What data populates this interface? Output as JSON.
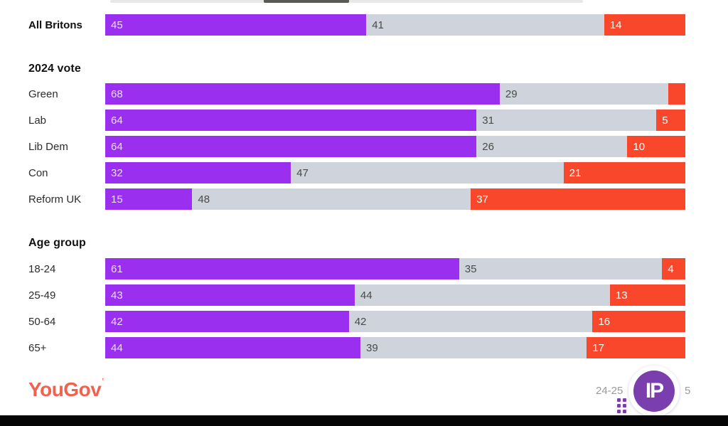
{
  "chart_data": {
    "type": "bar",
    "variant": "horizontal-stacked-100",
    "title": "",
    "legend": [],
    "colors": {
      "support": "#9B2FF0",
      "neutral": "#CFD3DB",
      "oppose": "#F8472B"
    },
    "axis": {
      "range": [
        0,
        100
      ],
      "grid": false
    },
    "groups": [
      {
        "heading": "",
        "rows": [
          {
            "label": "All Britons",
            "segments": [
              {
                "value": 45,
                "display": "45"
              },
              {
                "value": 41,
                "display": "41"
              },
              {
                "value": 14,
                "display": "14"
              }
            ]
          }
        ]
      },
      {
        "heading": "2024 vote",
        "rows": [
          {
            "label": "Green",
            "segments": [
              {
                "value": 68,
                "display": "68"
              },
              {
                "value": 29,
                "display": "29"
              },
              {
                "value": 3,
                "display": ""
              }
            ]
          },
          {
            "label": "Lab",
            "segments": [
              {
                "value": 64,
                "display": "64"
              },
              {
                "value": 31,
                "display": "31"
              },
              {
                "value": 5,
                "display": "5"
              }
            ]
          },
          {
            "label": "Lib Dem",
            "segments": [
              {
                "value": 64,
                "display": "64"
              },
              {
                "value": 26,
                "display": "26"
              },
              {
                "value": 10,
                "display": "10"
              }
            ]
          },
          {
            "label": "Con",
            "segments": [
              {
                "value": 32,
                "display": "32"
              },
              {
                "value": 47,
                "display": "47"
              },
              {
                "value": 21,
                "display": "21"
              }
            ]
          },
          {
            "label": "Reform UK",
            "segments": [
              {
                "value": 15,
                "display": "15"
              },
              {
                "value": 48,
                "display": "48"
              },
              {
                "value": 37,
                "display": "37"
              }
            ]
          }
        ]
      },
      {
        "heading": "Age group",
        "rows": [
          {
            "label": "18-24",
            "segments": [
              {
                "value": 61,
                "display": "61"
              },
              {
                "value": 35,
                "display": "35"
              },
              {
                "value": 4,
                "display": "4"
              }
            ]
          },
          {
            "label": "25-49",
            "segments": [
              {
                "value": 43,
                "display": "43"
              },
              {
                "value": 44,
                "display": "44"
              },
              {
                "value": 13,
                "display": "13"
              }
            ]
          },
          {
            "label": "50-64",
            "segments": [
              {
                "value": 42,
                "display": "42"
              },
              {
                "value": 42,
                "display": "42"
              },
              {
                "value": 16,
                "display": "16"
              }
            ]
          },
          {
            "label": "65+",
            "segments": [
              {
                "value": 44,
                "display": "44"
              },
              {
                "value": 39,
                "display": "39"
              },
              {
                "value": 17,
                "display": "17"
              }
            ]
          }
        ]
      }
    ]
  },
  "footer": {
    "brand": "YouGov",
    "brand_mark": "’",
    "date_left": "24-25",
    "date_right": "5",
    "watermark_text": "IP",
    "watermark_color": "#7B3EAE"
  }
}
